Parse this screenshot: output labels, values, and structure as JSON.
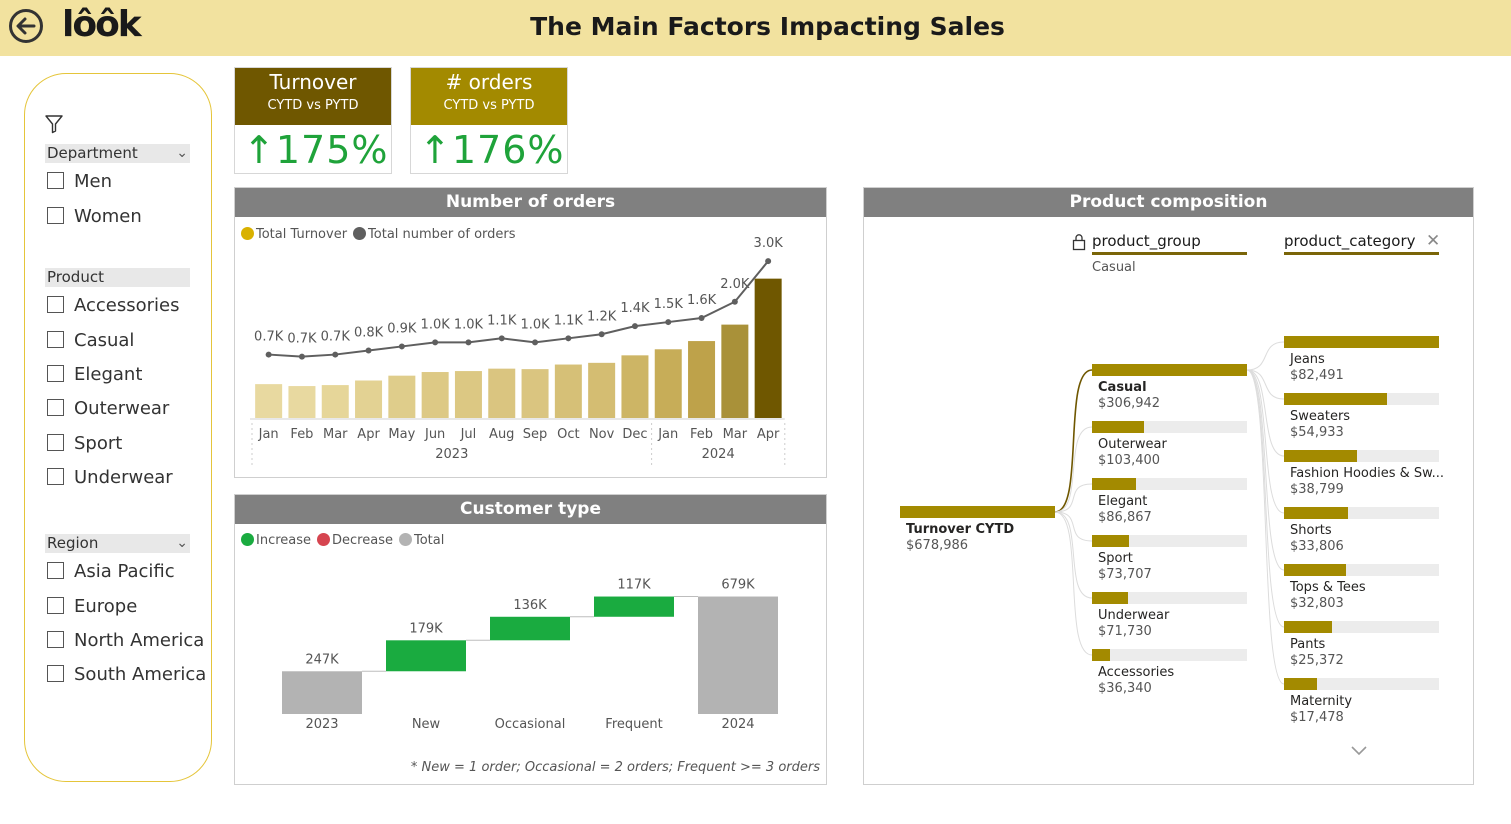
{
  "header": {
    "title": "The Main Factors Impacting Sales",
    "logo_text": "lôôk",
    "back_icon": "back-arrow-icon"
  },
  "slicers": {
    "filter_icon": "filter-icon",
    "department": {
      "title": "Department",
      "options": [
        "Men",
        "Women"
      ]
    },
    "product": {
      "title": "Product",
      "options": [
        "Accessories",
        "Casual",
        "Elegant",
        "Outerwear",
        "Sport",
        "Underwear"
      ]
    },
    "region": {
      "title": "Region",
      "options": [
        "Asia Pacific",
        "Europe",
        "North America",
        "South America"
      ]
    }
  },
  "kpis": [
    {
      "title": "Turnover",
      "subtitle": "CYTD vs PYTD",
      "value": "↑175%",
      "color": "#6f5700"
    },
    {
      "title": "# orders",
      "subtitle": "CYTD vs PYTD",
      "value": "↑176%",
      "color": "#a38a00"
    }
  ],
  "orders_chart": {
    "title": "Number of orders",
    "legend": [
      {
        "label": "Total Turnover",
        "color": "#d9b100"
      },
      {
        "label": "Total number of orders",
        "color": "#5f5f5f"
      }
    ],
    "chart_data": {
      "type": "bar",
      "categories": [
        "Jan",
        "Feb",
        "Mar",
        "Apr",
        "May",
        "Jun",
        "Jul",
        "Aug",
        "Sep",
        "Oct",
        "Nov",
        "Dec",
        "Jan",
        "Feb",
        "Mar",
        "Apr"
      ],
      "year_groups": [
        {
          "label": "2023",
          "count": 12
        },
        {
          "label": "2024",
          "count": 4
        }
      ],
      "series": [
        {
          "name": "Total Turnover",
          "values": [
            14000,
            13200,
            13600,
            15500,
            17500,
            19000,
            19400,
            20400,
            20200,
            22100,
            22800,
            25900,
            28400,
            31800,
            38600,
            57600
          ]
        },
        {
          "name": "Total number of orders",
          "values": [
            700,
            650,
            700,
            800,
            900,
            1000,
            1000,
            1100,
            1000,
            1100,
            1200,
            1400,
            1500,
            1600,
            2000,
            3000
          ]
        }
      ],
      "data_labels": [
        "0.7K",
        "0.7K",
        "0.7K",
        "0.8K",
        "0.9K",
        "1.0K",
        "1.0K",
        "1.1K",
        "1.0K",
        "1.1K",
        "1.2K",
        "1.4K",
        "1.5K",
        "1.6K",
        "2.0K",
        "3.0K"
      ],
      "bar_colors": [
        "#e8d9a0",
        "#e8d9a0",
        "#e6d699",
        "#e3d293",
        "#dfcd8b",
        "#ddc985",
        "#dcc883",
        "#dac580",
        "#dac580",
        "#d6c077",
        "#d4bd72",
        "#cdb565",
        "#c7ad58",
        "#bea24a",
        "#a99139",
        "#6f5700"
      ]
    }
  },
  "customer_chart": {
    "title": "Customer type",
    "legend": [
      {
        "label": "Increase",
        "color": "#1aab40"
      },
      {
        "label": "Decrease",
        "color": "#d64550"
      },
      {
        "label": "Total",
        "color": "#b3b3b3"
      }
    ],
    "chart_data": {
      "type": "bar",
      "subtype": "waterfall",
      "categories": [
        "2023",
        "New",
        "Occasional",
        "Frequent",
        "2024"
      ],
      "values": [
        247,
        179,
        136,
        117,
        679
      ],
      "kinds": [
        "total",
        "increase",
        "increase",
        "increase",
        "total"
      ],
      "data_labels": [
        "247K",
        "179K",
        "136K",
        "117K",
        "679K"
      ]
    },
    "footnote": "*  New = 1 order; Occasional =  2 orders; Frequent >= 3 orders"
  },
  "product_composition": {
    "title": "Product composition",
    "level1_header": "product_group",
    "level1_filter": "Casual",
    "level2_header": "product_category",
    "lock_icon": "lock-icon",
    "close_icon": "close-icon",
    "expand_icon": "chevron-down-icon",
    "root": {
      "label": "Turnover CYTD",
      "value": "$678,986",
      "amount": 678986
    },
    "groups": [
      {
        "label": "Casual",
        "value": "$306,942",
        "amount": 306942,
        "selected": true
      },
      {
        "label": "Outerwear",
        "value": "$103,400",
        "amount": 103400
      },
      {
        "label": "Elegant",
        "value": "$86,867",
        "amount": 86867
      },
      {
        "label": "Sport",
        "value": "$73,707",
        "amount": 73707
      },
      {
        "label": "Underwear",
        "value": "$71,730",
        "amount": 71730
      },
      {
        "label": "Accessories",
        "value": "$36,340",
        "amount": 36340
      }
    ],
    "categories": [
      {
        "label": "Jeans",
        "value": "$82,491",
        "amount": 82491
      },
      {
        "label": "Sweaters",
        "value": "$54,933",
        "amount": 54933
      },
      {
        "label": "Fashion Hoodies & Sw...",
        "value": "$38,799",
        "amount": 38799
      },
      {
        "label": "Shorts",
        "value": "$33,806",
        "amount": 33806
      },
      {
        "label": "Tops & Tees",
        "value": "$32,803",
        "amount": 32803
      },
      {
        "label": "Pants",
        "value": "$25,372",
        "amount": 25372
      },
      {
        "label": "Maternity",
        "value": "$17,478",
        "amount": 17478
      }
    ]
  }
}
